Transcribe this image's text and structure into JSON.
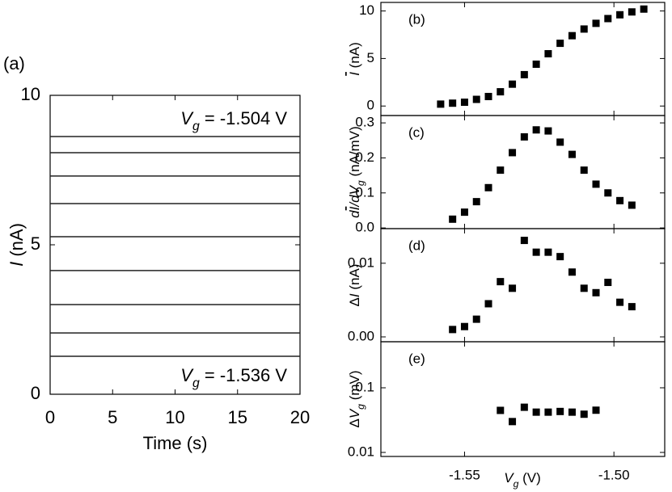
{
  "chart_data": [
    {
      "type": "line",
      "label": "(a)",
      "xlabel": "Time (s)",
      "ylabel": [
        "I",
        " (nA)"
      ],
      "xlim": [
        0,
        20
      ],
      "ylim": [
        0,
        10
      ],
      "xticks": [
        0,
        5,
        10,
        15,
        20
      ],
      "yticks": [
        0,
        5,
        10
      ],
      "color": "#222222",
      "x": [
        0,
        20
      ],
      "series": [
        {
          "values": [
            8.62,
            8.62
          ]
        },
        {
          "values": [
            8.08,
            8.08
          ]
        },
        {
          "values": [
            7.3,
            7.3
          ]
        },
        {
          "values": [
            6.38,
            6.38
          ]
        },
        {
          "values": [
            5.27,
            5.27
          ]
        },
        {
          "values": [
            4.14,
            4.14
          ]
        },
        {
          "values": [
            3.0,
            3.0
          ]
        },
        {
          "values": [
            2.05,
            2.05
          ]
        },
        {
          "values": [
            1.27,
            1.27
          ]
        }
      ],
      "annotations": [
        [
          "V",
          "g",
          " = -1.504 V"
        ],
        [
          "V",
          "g",
          " = -1.536 V"
        ]
      ]
    },
    {
      "type": "scatter",
      "label": "(b)",
      "ylabel": [
        "I",
        " (nA)"
      ],
      "color": "#000000",
      "xlim": [
        -1.578,
        -1.483
      ],
      "ylim": [
        -1.0,
        10.9
      ],
      "yticks": [
        0,
        5,
        10
      ],
      "x": [
        -1.558,
        -1.554,
        -1.55,
        -1.546,
        -1.542,
        -1.538,
        -1.534,
        -1.53,
        -1.526,
        -1.522,
        -1.518,
        -1.514,
        -1.51,
        -1.506,
        -1.502,
        -1.498,
        -1.494,
        -1.49
      ],
      "values": [
        0.2,
        0.3,
        0.4,
        0.7,
        1.0,
        1.5,
        2.3,
        3.3,
        4.4,
        5.5,
        6.6,
        7.4,
        8.1,
        8.7,
        9.2,
        9.6,
        9.9,
        10.2
      ]
    },
    {
      "type": "scatter",
      "label": "(c)",
      "ylabel": [
        "d",
        "I",
        "/d",
        "V",
        "g",
        " (nA/mV)"
      ],
      "color": "#000000",
      "xlim": [
        -1.578,
        -1.483
      ],
      "ylim": [
        -0.002,
        0.321
      ],
      "yticks": [
        {
          "value": 0,
          "label": "0.0"
        },
        0.1,
        0.2,
        0.3
      ],
      "x": [
        -1.554,
        -1.55,
        -1.546,
        -1.542,
        -1.538,
        -1.534,
        -1.53,
        -1.526,
        -1.522,
        -1.518,
        -1.514,
        -1.51,
        -1.506,
        -1.502,
        -1.498,
        -1.494
      ],
      "values": [
        0.025,
        0.045,
        0.075,
        0.115,
        0.165,
        0.215,
        0.26,
        0.28,
        0.277,
        0.245,
        0.21,
        0.165,
        0.125,
        0.1,
        0.078,
        0.065
      ]
    },
    {
      "type": "scatter",
      "label": "(d)",
      "ylabel": [
        "Δ",
        "I",
        " (nA)"
      ],
      "color": "#000000",
      "xlim": [
        -1.578,
        -1.483
      ],
      "ylim": [
        -0.00066,
        0.0147
      ],
      "yticks": [
        {
          "value": 0,
          "label": "0.00"
        },
        0.01
      ],
      "x": [
        -1.554,
        -1.55,
        -1.546,
        -1.542,
        -1.538,
        -1.534,
        -1.53,
        -1.526,
        -1.522,
        -1.518,
        -1.514,
        -1.51,
        -1.506,
        -1.502,
        -1.498,
        -1.494
      ],
      "values": [
        0.001,
        0.0014,
        0.0024,
        0.0045,
        0.0075,
        0.0066,
        0.0131,
        0.0115,
        0.0115,
        0.0109,
        0.0088,
        0.0066,
        0.006,
        0.0074,
        0.0047,
        0.0041
      ]
    },
    {
      "type": "scatter",
      "label": "(e)",
      "ylabel": [
        "Δ",
        "V",
        "g",
        " (mV)"
      ],
      "xlabel": [
        "V",
        "g",
        " (V)"
      ],
      "color": "#000000",
      "log": true,
      "xlim": [
        -1.578,
        -1.483
      ],
      "ylim": [
        0.00866,
        0.516
      ],
      "xticks": [
        -1.55,
        {
          "value": -1.5,
          "label": "-1.50"
        }
      ],
      "yticks": [
        0.01,
        0.1
      ],
      "x": [
        -1.538,
        -1.534,
        -1.53,
        -1.526,
        -1.522,
        -1.518,
        -1.514,
        -1.51,
        -1.506
      ],
      "values": [
        0.0447,
        0.03,
        0.05,
        0.042,
        0.042,
        0.043,
        0.042,
        0.039,
        0.045
      ]
    }
  ]
}
